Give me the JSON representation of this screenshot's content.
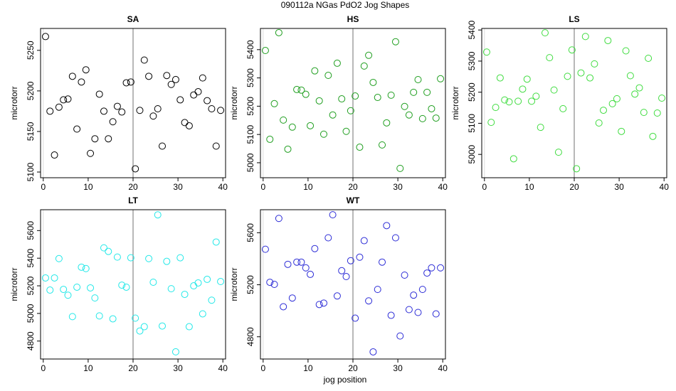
{
  "title": "090112a   NGas PdO2 Jog Shapes",
  "xlabel": "jog position",
  "chart_data": [
    {
      "type": "scatter",
      "title": "SA",
      "ylabel": "microtorr",
      "color": "#000000",
      "vline": 20,
      "xlim": [
        -0.6,
        40.6
      ],
      "ylim": [
        5093,
        5277
      ],
      "xticks": [
        0,
        10,
        20,
        30,
        40
      ],
      "yticks": [
        5100,
        5150,
        5200,
        5250
      ],
      "x": [
        0.5,
        1.5,
        2.5,
        3.5,
        4.5,
        5.5,
        6.5,
        7.5,
        8.5,
        9.5,
        10.5,
        11.5,
        12.5,
        13.5,
        14.5,
        15.5,
        16.5,
        17.5,
        18.5,
        19.5,
        20.5,
        21.5,
        22.5,
        23.5,
        24.5,
        25.5,
        26.5,
        27.5,
        28.5,
        29.5,
        30.5,
        31.5,
        32.5,
        33.5,
        34.5,
        35.5,
        36.5,
        37.5,
        38.5,
        39.5
      ],
      "values": [
        5267,
        5175,
        5121,
        5180,
        5189,
        5190,
        5218,
        5153,
        5211,
        5226,
        5123,
        5141,
        5196,
        5175,
        5141,
        5162,
        5181,
        5174,
        5210,
        5211,
        5104,
        5176,
        5238,
        5218,
        5169,
        5178,
        5132,
        5219,
        5208,
        5214,
        5189,
        5161,
        5157,
        5195,
        5199,
        5216,
        5188,
        5178,
        5132,
        5176
      ]
    },
    {
      "type": "scatter",
      "title": "HS",
      "ylabel": "microtorr",
      "color": "#1f9e1f",
      "vline": 20,
      "xlim": [
        -0.6,
        40.6
      ],
      "ylim": [
        4947,
        5475
      ],
      "xticks": [
        0,
        10,
        20,
        30,
        40
      ],
      "yticks": [
        5000,
        5100,
        5200,
        5300,
        5400
      ],
      "x": [
        0.5,
        1.5,
        2.5,
        3.5,
        4.5,
        5.5,
        6.5,
        7.5,
        8.5,
        9.5,
        10.5,
        11.5,
        12.5,
        13.5,
        14.5,
        15.5,
        16.5,
        17.5,
        18.5,
        19.5,
        20.5,
        21.5,
        22.5,
        23.5,
        24.5,
        25.5,
        26.5,
        27.5,
        28.5,
        29.5,
        30.5,
        31.5,
        32.5,
        33.5,
        34.5,
        35.5,
        36.5,
        37.5,
        38.5,
        39.5
      ],
      "values": [
        5397,
        5083,
        5209,
        5460,
        5151,
        5048,
        5126,
        5259,
        5257,
        5242,
        5131,
        5325,
        5219,
        5101,
        5309,
        5169,
        5352,
        5226,
        5111,
        5184,
        5236,
        5055,
        5342,
        5380,
        5284,
        5231,
        5063,
        5141,
        5239,
        5428,
        4980,
        5199,
        5169,
        5249,
        5294,
        5156,
        5249,
        5191,
        5158,
        5297
      ]
    },
    {
      "type": "scatter",
      "title": "LS",
      "ylabel": "microtorr",
      "color": "#3fdc3f",
      "vline": 20,
      "xlim": [
        -0.6,
        40.6
      ],
      "ylim": [
        4925,
        5405
      ],
      "xticks": [
        0,
        10,
        20,
        30,
        40
      ],
      "yticks": [
        5000,
        5100,
        5200,
        5300,
        5400
      ],
      "x": [
        0.5,
        1.5,
        2.5,
        3.5,
        4.5,
        5.5,
        6.5,
        7.5,
        8.5,
        9.5,
        10.5,
        11.5,
        12.5,
        13.5,
        14.5,
        15.5,
        16.5,
        17.5,
        18.5,
        19.5,
        20.5,
        21.5,
        22.5,
        23.5,
        24.5,
        25.5,
        26.5,
        27.5,
        28.5,
        29.5,
        30.5,
        31.5,
        32.5,
        33.5,
        34.5,
        35.5,
        36.5,
        37.5,
        38.5,
        39.5
      ],
      "values": [
        5329,
        5103,
        5151,
        5246,
        5175,
        5169,
        4986,
        5171,
        5210,
        5242,
        5171,
        5187,
        5087,
        5391,
        5311,
        5207,
        5007,
        5147,
        5251,
        5336,
        4954,
        5262,
        5379,
        5246,
        5291,
        5101,
        5142,
        5366,
        5163,
        5179,
        5074,
        5333,
        5253,
        5194,
        5214,
        5135,
        5309,
        5058,
        5133,
        5181
      ]
    },
    {
      "type": "scatter",
      "title": "LT",
      "ylabel": "microtorr",
      "color": "#22e8e8",
      "vline": 20,
      "xlim": [
        -0.6,
        40.6
      ],
      "ylim": [
        4670,
        5751
      ],
      "xticks": [
        0,
        10,
        20,
        30,
        40
      ],
      "yticks": [
        4800,
        5000,
        5200,
        5400,
        5600
      ],
      "x": [
        0.5,
        1.5,
        2.5,
        3.5,
        4.5,
        5.5,
        6.5,
        7.5,
        8.5,
        9.5,
        10.5,
        11.5,
        12.5,
        13.5,
        14.5,
        15.5,
        16.5,
        17.5,
        18.5,
        19.5,
        20.5,
        21.5,
        22.5,
        23.5,
        24.5,
        25.5,
        26.5,
        27.5,
        28.5,
        29.5,
        30.5,
        31.5,
        32.5,
        33.5,
        34.5,
        35.5,
        36.5,
        37.5,
        38.5,
        39.5
      ],
      "values": [
        5257,
        5169,
        5257,
        5397,
        5174,
        5132,
        4977,
        5190,
        5335,
        5325,
        5185,
        5112,
        4982,
        5475,
        5449,
        4961,
        5408,
        5205,
        5190,
        5403,
        4966,
        4873,
        4904,
        5397,
        5226,
        5714,
        4909,
        5377,
        5179,
        4722,
        5403,
        5138,
        4904,
        5200,
        5221,
        4997,
        5247,
        5096,
        5517,
        5231
      ]
    },
    {
      "type": "scatter",
      "title": "WT",
      "ylabel": "microtorr",
      "color": "#2b2bd6",
      "vline": 20,
      "xlim": [
        -0.6,
        40.6
      ],
      "ylim": [
        4629,
        5777
      ],
      "xticks": [
        0,
        10,
        20,
        30,
        40
      ],
      "yticks": [
        4800,
        5200,
        5600
      ],
      "x": [
        0.5,
        1.5,
        2.5,
        3.5,
        4.5,
        5.5,
        6.5,
        7.5,
        8.5,
        9.5,
        10.5,
        11.5,
        12.5,
        13.5,
        14.5,
        15.5,
        16.5,
        17.5,
        18.5,
        19.5,
        20.5,
        21.5,
        22.5,
        23.5,
        24.5,
        25.5,
        26.5,
        27.5,
        28.5,
        29.5,
        30.5,
        31.5,
        32.5,
        33.5,
        34.5,
        35.5,
        36.5,
        37.5,
        38.5,
        39.5
      ],
      "values": [
        5473,
        5219,
        5203,
        5710,
        5031,
        5357,
        5098,
        5374,
        5374,
        5330,
        5280,
        5478,
        5048,
        5059,
        5561,
        5738,
        5114,
        5308,
        5263,
        5385,
        4943,
        5412,
        5539,
        5076,
        4684,
        5164,
        5374,
        5655,
        4965,
        5561,
        4806,
        5274,
        5009,
        5120,
        4987,
        5164,
        5290,
        5330,
        4976,
        5330
      ]
    }
  ]
}
